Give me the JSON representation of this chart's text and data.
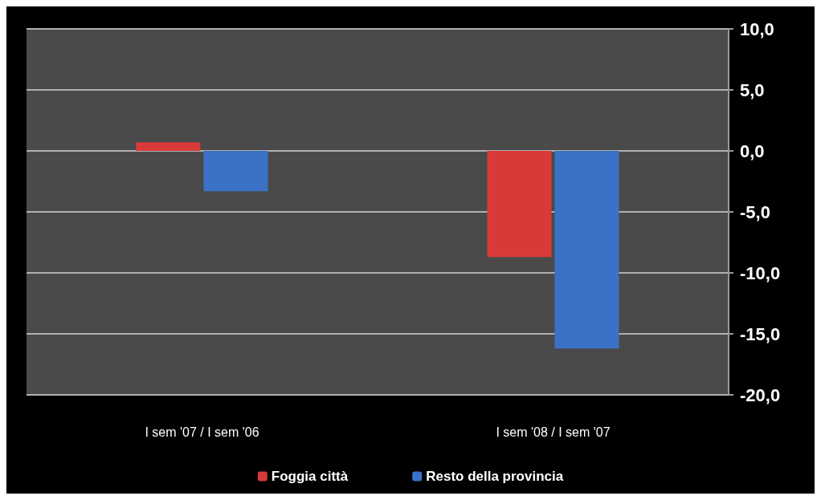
{
  "chart_data": {
    "type": "bar",
    "categories": [
      "I sem '07 / I sem '06",
      "I sem '08 / I sem '07"
    ],
    "series": [
      {
        "name": "Foggia città",
        "color": "#d83a3a",
        "values": [
          0.7,
          -8.7
        ]
      },
      {
        "name": "Resto della provincia",
        "color": "#3b72c8",
        "values": [
          -3.3,
          -16.2
        ]
      }
    ],
    "ylim": [
      -20,
      10
    ],
    "yticks": [
      {
        "value": -20,
        "label": "-20,0"
      },
      {
        "value": -15,
        "label": "-15,0"
      },
      {
        "value": -10,
        "label": "-10,0"
      },
      {
        "value": -5,
        "label": "-5,0"
      },
      {
        "value": 0,
        "label": "0,0"
      },
      {
        "value": 5,
        "label": "5,0"
      },
      {
        "value": 10,
        "label": "10,0"
      }
    ],
    "grid": "y",
    "legend": "bottom"
  }
}
